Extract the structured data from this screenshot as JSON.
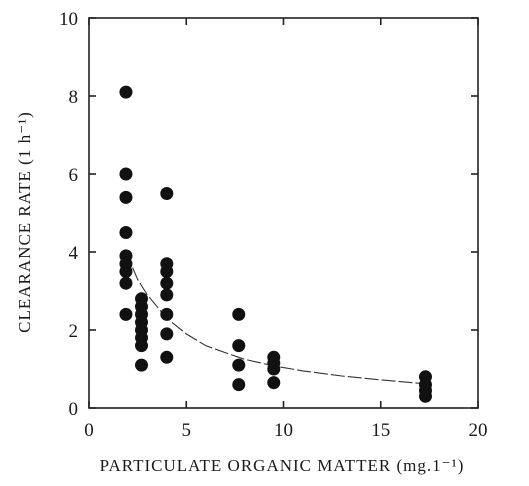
{
  "chart_data": {
    "type": "scatter",
    "title": "",
    "xlabel": "PARTICULATE ORGANIC MATTER (mg.1⁻¹)",
    "ylabel": "CLEARANCE RATE (1 h⁻¹)",
    "xlim": [
      0,
      20
    ],
    "ylim": [
      0,
      10
    ],
    "xticks": [
      "0",
      "5",
      "10",
      "15",
      "20"
    ],
    "yticks": [
      "0",
      "2",
      "4",
      "6",
      "8",
      "10"
    ],
    "grid": false,
    "legend": "none",
    "points": [
      {
        "x": 1.9,
        "y": 8.1
      },
      {
        "x": 1.9,
        "y": 6.0
      },
      {
        "x": 1.9,
        "y": 5.4
      },
      {
        "x": 1.9,
        "y": 4.5
      },
      {
        "x": 1.9,
        "y": 3.9
      },
      {
        "x": 1.9,
        "y": 3.7
      },
      {
        "x": 1.9,
        "y": 3.5
      },
      {
        "x": 1.9,
        "y": 3.2
      },
      {
        "x": 1.9,
        "y": 2.4
      },
      {
        "x": 2.7,
        "y": 2.8
      },
      {
        "x": 2.7,
        "y": 2.6
      },
      {
        "x": 2.7,
        "y": 2.4
      },
      {
        "x": 2.7,
        "y": 2.2
      },
      {
        "x": 2.7,
        "y": 2.0
      },
      {
        "x": 2.7,
        "y": 1.8
      },
      {
        "x": 2.7,
        "y": 1.6
      },
      {
        "x": 2.7,
        "y": 1.1
      },
      {
        "x": 4.0,
        "y": 5.5
      },
      {
        "x": 4.0,
        "y": 3.7
      },
      {
        "x": 4.0,
        "y": 3.5
      },
      {
        "x": 4.0,
        "y": 3.2
      },
      {
        "x": 4.0,
        "y": 2.9
      },
      {
        "x": 4.0,
        "y": 2.4
      },
      {
        "x": 4.0,
        "y": 1.9
      },
      {
        "x": 4.0,
        "y": 1.3
      },
      {
        "x": 7.7,
        "y": 2.4
      },
      {
        "x": 7.7,
        "y": 1.6
      },
      {
        "x": 7.7,
        "y": 1.1
      },
      {
        "x": 7.7,
        "y": 0.6
      },
      {
        "x": 9.5,
        "y": 1.3
      },
      {
        "x": 9.5,
        "y": 1.15
      },
      {
        "x": 9.5,
        "y": 1.0
      },
      {
        "x": 9.5,
        "y": 0.65
      },
      {
        "x": 17.3,
        "y": 0.8
      },
      {
        "x": 17.3,
        "y": 0.6
      },
      {
        "x": 17.3,
        "y": 0.45
      },
      {
        "x": 17.3,
        "y": 0.3
      }
    ],
    "fit_curve": [
      {
        "x": 1.9,
        "y": 4.0
      },
      {
        "x": 2.5,
        "y": 3.3
      },
      {
        "x": 3.0,
        "y": 2.9
      },
      {
        "x": 4.0,
        "y": 2.3
      },
      {
        "x": 5.0,
        "y": 1.9
      },
      {
        "x": 6.0,
        "y": 1.6
      },
      {
        "x": 7.0,
        "y": 1.42
      },
      {
        "x": 8.0,
        "y": 1.25
      },
      {
        "x": 9.5,
        "y": 1.08
      },
      {
        "x": 11.0,
        "y": 0.95
      },
      {
        "x": 13.0,
        "y": 0.82
      },
      {
        "x": 15.0,
        "y": 0.72
      },
      {
        "x": 17.3,
        "y": 0.62
      }
    ]
  }
}
